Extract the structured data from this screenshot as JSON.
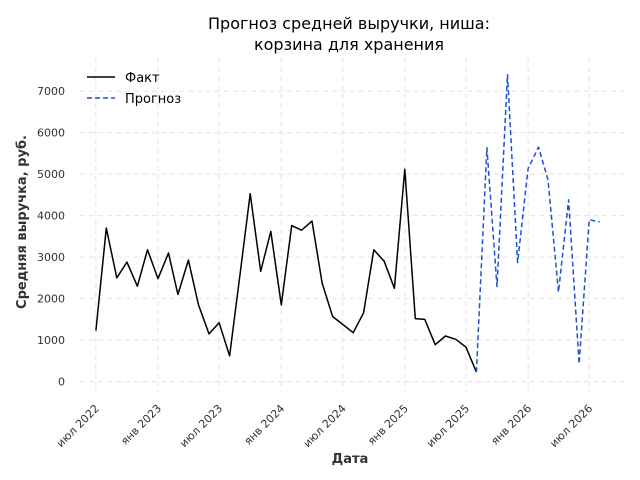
{
  "chart_data": {
    "type": "line",
    "title_lines": [
      "Прогноз средней выручки, ниша:",
      "корзина для хранения"
    ],
    "xlabel": "Дата",
    "ylabel": "Средняя выручка, руб.",
    "ylim": [
      -250,
      7800
    ],
    "y_ticks": [
      0,
      1000,
      2000,
      3000,
      4000,
      5000,
      6000,
      7000
    ],
    "x_ticks": [
      {
        "date": "2022-07-01",
        "label": "июл 2022"
      },
      {
        "date": "2023-01-01",
        "label": "янв 2023"
      },
      {
        "date": "2023-07-01",
        "label": "июл 2023"
      },
      {
        "date": "2024-01-01",
        "label": "янв 2024"
      },
      {
        "date": "2024-07-01",
        "label": "июл 2024"
      },
      {
        "date": "2025-01-01",
        "label": "янв 2025"
      },
      {
        "date": "2025-07-01",
        "label": "июл 2025"
      },
      {
        "date": "2026-01-01",
        "label": "янв 2026"
      },
      {
        "date": "2026-07-01",
        "label": "июл 2026"
      }
    ],
    "xlim": [
      "2022-05-15",
      "2026-10-15"
    ],
    "grid": true,
    "legend_position": "top-left",
    "series": [
      {
        "name": "Факт",
        "color": "#000000",
        "style": "solid",
        "x": [
          "2022-07",
          "2022-08",
          "2022-09",
          "2022-10",
          "2022-11",
          "2022-12",
          "2023-01",
          "2023-02",
          "2023-03",
          "2023-04",
          "2023-05",
          "2023-06",
          "2023-07",
          "2023-08",
          "2023-09",
          "2023-10",
          "2023-11",
          "2023-12",
          "2024-01",
          "2024-02",
          "2024-03",
          "2024-04",
          "2024-05",
          "2024-06",
          "2024-07",
          "2024-08",
          "2024-09",
          "2024-10",
          "2024-11",
          "2024-12",
          "2025-01",
          "2025-02",
          "2025-03",
          "2025-04",
          "2025-05",
          "2025-06",
          "2025-07",
          "2025-08"
        ],
        "y": [
          1230,
          3700,
          2500,
          2880,
          2300,
          3180,
          2480,
          3100,
          2100,
          2930,
          1850,
          1150,
          1420,
          620,
          2600,
          4530,
          2660,
          3620,
          1850,
          3760,
          3650,
          3870,
          2380,
          1570,
          1380,
          1180,
          1660,
          3180,
          2900,
          2250,
          5120,
          1520,
          1500,
          890,
          1100,
          1020,
          830,
          230
        ]
      },
      {
        "name": "Прогноз",
        "color": "#1f4fd6",
        "style": "dashed",
        "x": [
          "2025-08",
          "2025-09",
          "2025-10",
          "2025-11",
          "2025-12",
          "2026-01",
          "2026-02",
          "2026-03",
          "2026-04",
          "2026-05",
          "2026-06",
          "2026-07",
          "2026-08"
        ],
        "y": [
          230,
          5640,
          2290,
          7400,
          2870,
          5140,
          5650,
          4860,
          2160,
          4380,
          430,
          3900,
          3850
        ]
      }
    ]
  }
}
